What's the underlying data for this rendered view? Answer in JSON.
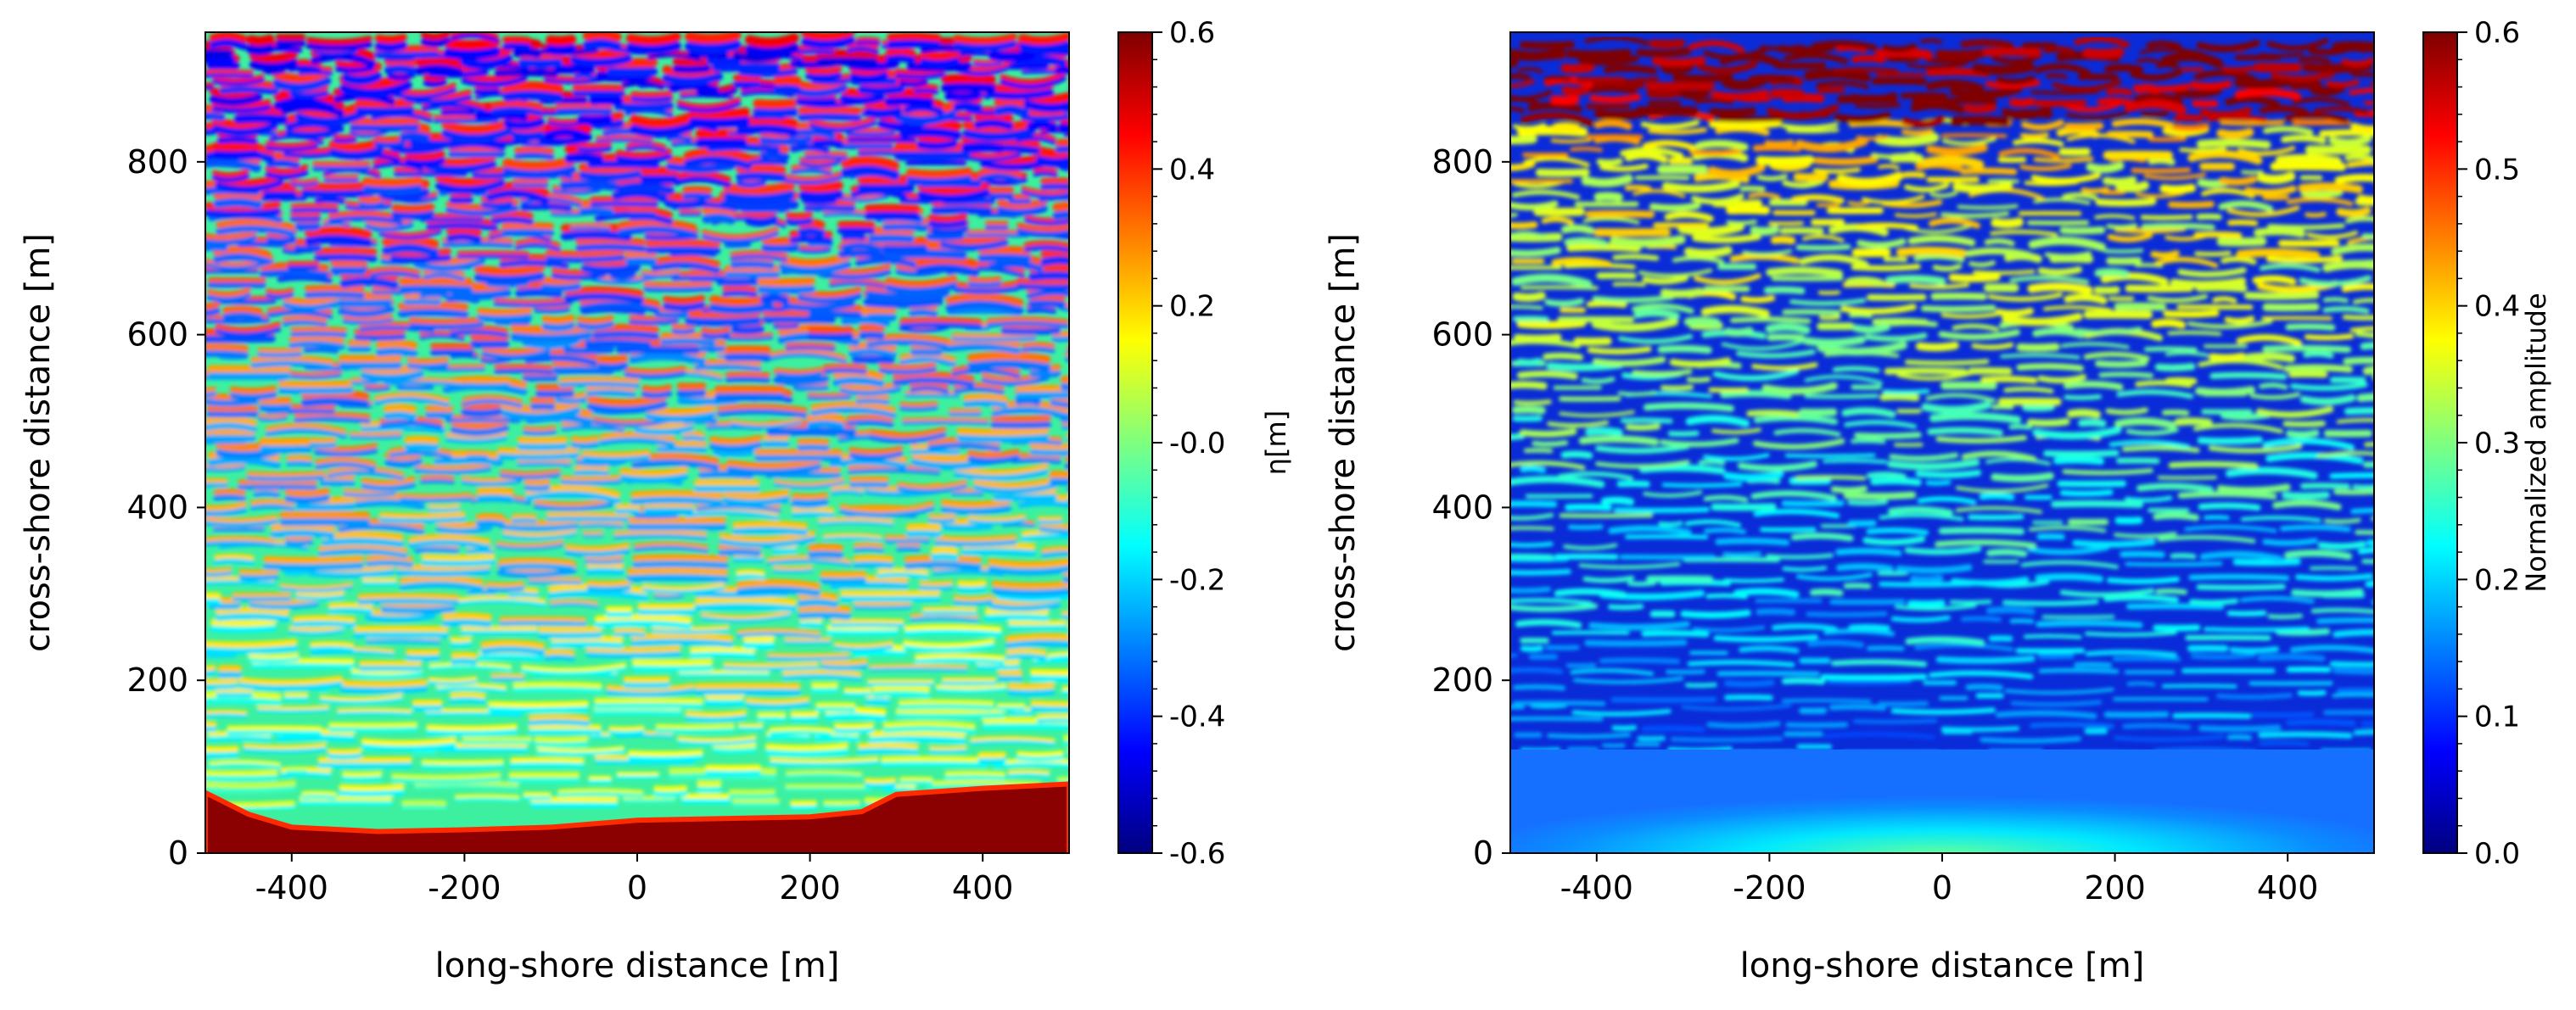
{
  "colors": {
    "jet": [
      "#00007f",
      "#0000ff",
      "#007fff",
      "#00ffff",
      "#7fff7f",
      "#ffff00",
      "#ff7f00",
      "#ff0000",
      "#7f0000"
    ],
    "shore_band": "#8b0000",
    "frame": "#000000"
  },
  "chart_data": [
    {
      "type": "heatmap",
      "title": "",
      "xlabel": "long-shore distance [m]",
      "ylabel": "cross-shore distance [m]",
      "xlim": [
        -500,
        500
      ],
      "ylim": [
        0,
        950
      ],
      "xticks": [
        -400,
        -200,
        0,
        200,
        400
      ],
      "xtick_labels": [
        "-400",
        "-200",
        "0",
        "200",
        "400"
      ],
      "yticks": [
        0,
        200,
        400,
        600,
        800
      ],
      "ytick_labels": [
        "0",
        "200",
        "400",
        "600",
        "800"
      ],
      "colorbar": {
        "label": "η[m]",
        "colormap": "jet",
        "range": [
          -0.6,
          0.6
        ],
        "ticks": [
          -0.6,
          -0.4,
          -0.2,
          0.0,
          0.2,
          0.4,
          0.6
        ],
        "tick_labels": [
          "-0.6",
          "-0.4",
          "-0.2",
          "-0.0",
          "0.2",
          "0.4",
          "0.6"
        ]
      },
      "field": "surface elevation",
      "shoreline_m": [
        [
          -500,
          70
        ],
        [
          -450,
          45
        ],
        [
          -400,
          30
        ],
        [
          -300,
          25
        ],
        [
          -200,
          27
        ],
        [
          -100,
          30
        ],
        [
          0,
          38
        ],
        [
          100,
          40
        ],
        [
          200,
          42
        ],
        [
          260,
          48
        ],
        [
          300,
          68
        ],
        [
          400,
          75
        ],
        [
          500,
          80
        ]
      ]
    },
    {
      "type": "heatmap",
      "title": "",
      "xlabel": "long-shore distance [m]",
      "ylabel": "cross-shore distance [m]",
      "xlim": [
        -500,
        500
      ],
      "ylim": [
        0,
        950
      ],
      "xticks": [
        -400,
        -200,
        0,
        200,
        400
      ],
      "xtick_labels": [
        "-400",
        "-200",
        "0",
        "200",
        "400"
      ],
      "yticks": [
        0,
        200,
        400,
        600,
        800
      ],
      "ytick_labels": [
        "0",
        "200",
        "400",
        "600",
        "800"
      ],
      "colorbar": {
        "label": "Normalized amplitude",
        "colormap": "jet",
        "range": [
          0.0,
          0.6
        ],
        "ticks": [
          0.0,
          0.1,
          0.2,
          0.3,
          0.4,
          0.5,
          0.6
        ],
        "tick_labels": [
          "0.0",
          "0.1",
          "0.2",
          "0.3",
          "0.4",
          "0.5",
          "0.6"
        ]
      },
      "field": "normalized wave amplitude",
      "masked_below_m": 120
    }
  ]
}
